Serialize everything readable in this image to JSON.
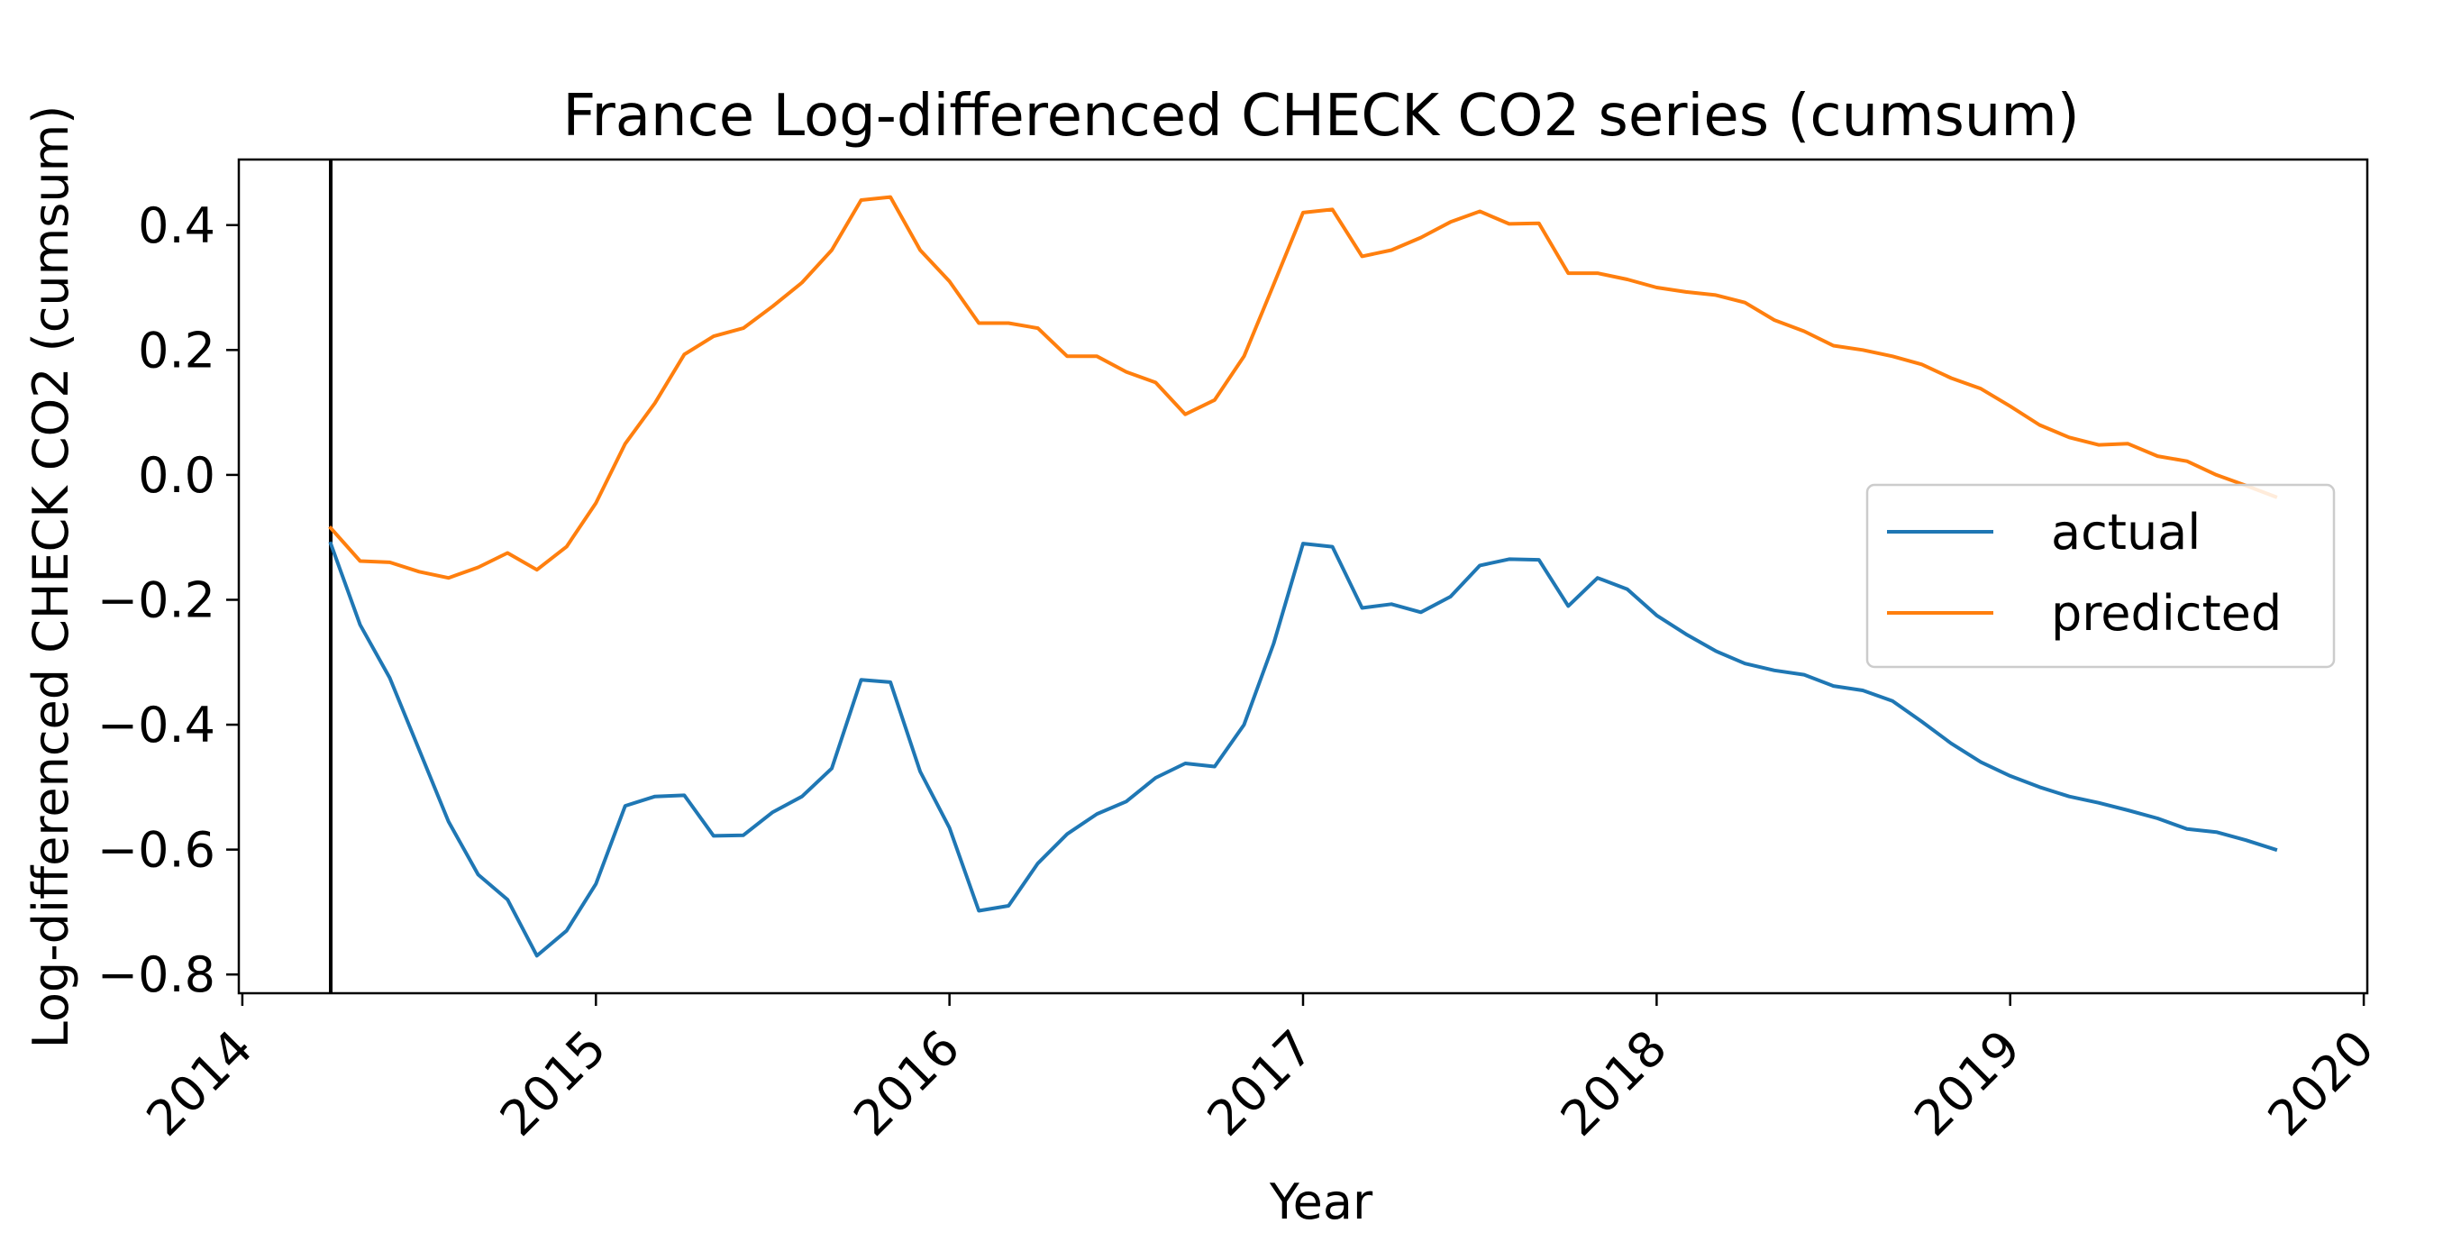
{
  "chart_data": {
    "type": "line",
    "title": "France Log-differenced CHECK CO2 series (cumsum)",
    "xlabel": "Year",
    "ylabel": "Log-differenced CHECK CO2 (cumsum)",
    "xlim": [
      2013.99,
      2020.01
    ],
    "ylim": [
      -0.83,
      0.505
    ],
    "xticks": [
      2014,
      2015,
      2016,
      2017,
      2018,
      2019,
      2020
    ],
    "xtick_labels": [
      "2014",
      "2015",
      "2016",
      "2017",
      "2018",
      "2019",
      "2020"
    ],
    "yticks": [
      0.4,
      0.2,
      0.0,
      -0.2,
      -0.4,
      -0.6,
      -0.8
    ],
    "ytick_labels": [
      "0.4",
      "0.2",
      "0.0",
      "−0.2",
      "−0.4",
      "−0.6",
      "−0.8"
    ],
    "vline_x": 2014.25,
    "grid": false,
    "legend_position": "center-right",
    "x": [
      2014.25,
      2014.333,
      2014.417,
      2014.5,
      2014.583,
      2014.667,
      2014.75,
      2014.833,
      2014.917,
      2015.0,
      2015.083,
      2015.167,
      2015.25,
      2015.333,
      2015.417,
      2015.5,
      2015.583,
      2015.667,
      2015.75,
      2015.833,
      2015.917,
      2016.0,
      2016.083,
      2016.167,
      2016.25,
      2016.333,
      2016.417,
      2016.5,
      2016.583,
      2016.667,
      2016.75,
      2016.833,
      2016.917,
      2017.0,
      2017.083,
      2017.167,
      2017.25,
      2017.333,
      2017.417,
      2017.5,
      2017.583,
      2017.667,
      2017.75,
      2017.833,
      2017.917,
      2018.0,
      2018.083,
      2018.167,
      2018.25,
      2018.333,
      2018.417,
      2018.5,
      2018.583,
      2018.667,
      2018.75,
      2018.833,
      2018.917,
      2019.0,
      2019.083,
      2019.167,
      2019.25,
      2019.333,
      2019.417,
      2019.5,
      2019.583,
      2019.667,
      2019.75
    ],
    "series": [
      {
        "name": "actual",
        "color": "#1f77b4",
        "values": [
          -0.11,
          -0.24,
          -0.325,
          -0.44,
          -0.555,
          -0.64,
          -0.68,
          -0.77,
          -0.73,
          -0.655,
          -0.53,
          -0.515,
          -0.513,
          -0.578,
          -0.577,
          -0.54,
          -0.515,
          -0.47,
          -0.328,
          -0.332,
          -0.475,
          -0.565,
          -0.698,
          -0.69,
          -0.622,
          -0.575,
          -0.543,
          -0.523,
          -0.485,
          -0.462,
          -0.467,
          -0.4,
          -0.27,
          -0.11,
          -0.115,
          -0.213,
          -0.207,
          -0.22,
          -0.195,
          -0.145,
          -0.135,
          -0.136,
          -0.21,
          -0.165,
          -0.183,
          -0.225,
          -0.255,
          -0.282,
          -0.302,
          -0.313,
          -0.32,
          -0.338,
          -0.345,
          -0.362,
          -0.395,
          -0.43,
          -0.46,
          -0.482,
          -0.5,
          -0.515,
          -0.525,
          -0.537,
          -0.55,
          -0.567,
          -0.572,
          -0.585,
          -0.6
        ]
      },
      {
        "name": "predicted",
        "color": "#ff7f0e",
        "values": [
          -0.085,
          -0.138,
          -0.14,
          -0.155,
          -0.165,
          -0.148,
          -0.125,
          -0.152,
          -0.115,
          -0.045,
          0.05,
          0.115,
          0.193,
          0.222,
          0.235,
          0.27,
          0.308,
          0.36,
          0.44,
          0.445,
          0.36,
          0.31,
          0.243,
          0.243,
          0.235,
          0.19,
          0.19,
          0.165,
          0.148,
          0.097,
          0.12,
          0.19,
          0.305,
          0.42,
          0.425,
          0.35,
          0.36,
          0.38,
          0.405,
          0.422,
          0.402,
          0.403,
          0.323,
          0.323,
          0.313,
          0.3,
          0.293,
          0.288,
          0.276,
          0.248,
          0.23,
          0.207,
          0.2,
          0.19,
          0.177,
          0.155,
          0.138,
          0.11,
          0.08,
          0.06,
          0.048,
          0.05,
          0.03,
          0.022,
          0.0,
          -0.017,
          -0.035
        ]
      }
    ]
  }
}
